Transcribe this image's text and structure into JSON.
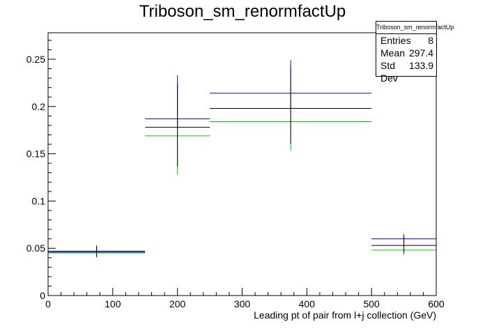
{
  "chart_data": {
    "type": "bar",
    "title": "Triboson_sm_renormfactUp",
    "xlabel": "Leading pt of pair from l+j collection (GeV)",
    "ylabel": "",
    "xlim": [
      0,
      600
    ],
    "ylim": [
      0,
      0.278
    ],
    "x_ticks": [
      "0",
      "100",
      "200",
      "300",
      "400",
      "500",
      "600"
    ],
    "y_ticks": [
      "0",
      "0.05",
      "0.1",
      "0.15",
      "0.2",
      "0.25"
    ],
    "grid": false,
    "legend": "none",
    "bins": [
      {
        "xlo": 0,
        "xhi": 150,
        "xc": 75,
        "up": 0.047,
        "nominal": 0.046,
        "down": 0.045,
        "err_lo": 0.04,
        "err_hi": 0.053
      },
      {
        "xlo": 150,
        "xhi": 250,
        "xc": 200,
        "up": 0.187,
        "nominal": 0.178,
        "down": 0.169,
        "err_lo": 0.128,
        "err_hi": 0.233
      },
      {
        "xlo": 250,
        "xhi": 500,
        "xc": 375,
        "up": 0.214,
        "nominal": 0.198,
        "down": 0.184,
        "err_lo": 0.153,
        "err_hi": 0.249
      },
      {
        "xlo": 500,
        "xhi": 600,
        "xc": 550,
        "up": 0.06,
        "nominal": 0.053,
        "down": 0.048,
        "err_lo": 0.043,
        "err_hi": 0.065
      }
    ],
    "colors": {
      "up": "#0000ff",
      "nominal": "#000000",
      "down": "#00cc00"
    }
  },
  "stats": {
    "title": "Triboson_sm_renormfactUp",
    "rows": [
      {
        "label": "Entries",
        "value": "8"
      },
      {
        "label": "Mean",
        "value": "297.4"
      },
      {
        "label": "Std Dev",
        "value": "133.9"
      }
    ]
  }
}
